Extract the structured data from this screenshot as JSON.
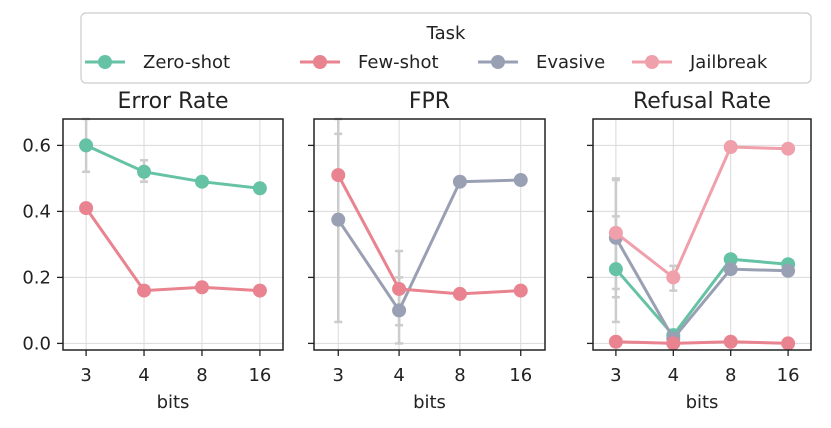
{
  "legend": {
    "title": "Task",
    "entries": [
      {
        "label": "Zero-shot",
        "color": "#66c2a5"
      },
      {
        "label": "Few-shot",
        "color": "#e8838f"
      },
      {
        "label": "Evasive",
        "color": "#9aa0b3"
      },
      {
        "label": "Jailbreak",
        "color": "#f0a0aa"
      }
    ]
  },
  "colors": {
    "Zero-shot": "#66c2a5",
    "Few-shot": "#e8838f",
    "Evasive": "#9aa0b3",
    "Jailbreak": "#f0a0aa",
    "grid": "#d9d9d9",
    "errorbar": "#cccccc"
  },
  "chart_data": [
    {
      "type": "line",
      "title": "Error Rate",
      "xlabel": "bits",
      "x": [
        "3",
        "4",
        "8",
        "16"
      ],
      "ylim": [
        -0.02,
        0.68
      ],
      "yticks": [
        0.0,
        0.2,
        0.4,
        0.6
      ],
      "ytick_labels": [
        "0.0",
        "0.2",
        "0.4",
        "0.6"
      ],
      "grid": true,
      "series": [
        {
          "name": "Zero-shot",
          "values": [
            0.6,
            0.52,
            0.49,
            0.47
          ],
          "err_low": [
            0.52,
            0.49,
            null,
            null
          ],
          "err_high": [
            0.68,
            0.555,
            null,
            null
          ]
        },
        {
          "name": "Few-shot",
          "values": [
            0.41,
            0.16,
            0.17,
            0.16
          ],
          "err_low": [
            null,
            null,
            null,
            null
          ],
          "err_high": [
            null,
            null,
            null,
            null
          ]
        }
      ]
    },
    {
      "type": "line",
      "title": "FPR",
      "xlabel": "bits",
      "x": [
        "3",
        "4",
        "8",
        "16"
      ],
      "ylim": [
        -0.02,
        0.68
      ],
      "yticks": [
        0.0,
        0.2,
        0.4,
        0.6
      ],
      "ytick_labels": [
        "",
        "",
        "",
        ""
      ],
      "grid": true,
      "series": [
        {
          "name": "Evasive",
          "values": [
            0.375,
            0.1,
            0.49,
            0.495
          ],
          "err_low": [
            0.065,
            0.0,
            null,
            null
          ],
          "err_high": [
            0.68,
            0.2,
            null,
            null
          ]
        },
        {
          "name": "Few-shot",
          "values": [
            0.51,
            0.165,
            0.15,
            0.16
          ],
          "err_low": [
            0.39,
            0.055,
            null,
            null
          ],
          "err_high": [
            0.635,
            0.28,
            null,
            null
          ]
        }
      ]
    },
    {
      "type": "line",
      "title": "Refusal Rate",
      "xlabel": "bits",
      "x": [
        "3",
        "4",
        "8",
        "16"
      ],
      "ylim": [
        -0.02,
        0.68
      ],
      "yticks": [
        0.0,
        0.2,
        0.4,
        0.6
      ],
      "ytick_labels": [
        "",
        "",
        "",
        ""
      ],
      "grid": true,
      "series": [
        {
          "name": "Zero-shot",
          "values": [
            0.225,
            0.025,
            0.255,
            0.24
          ],
          "err_low": [
            0.065,
            null,
            null,
            null
          ],
          "err_high": [
            0.385,
            null,
            null,
            null
          ]
        },
        {
          "name": "Evasive",
          "values": [
            0.32,
            0.015,
            0.225,
            0.22
          ],
          "err_low": [
            0.14,
            null,
            null,
            null
          ],
          "err_high": [
            0.5,
            null,
            null,
            null
          ]
        },
        {
          "name": "Few-shot",
          "values": [
            0.005,
            0.0,
            0.005,
            0.0
          ],
          "err_low": [
            null,
            null,
            null,
            null
          ],
          "err_high": [
            null,
            null,
            null,
            null
          ]
        },
        {
          "name": "Jailbreak",
          "values": [
            0.335,
            0.2,
            0.595,
            0.59
          ],
          "err_low": [
            0.165,
            0.16,
            null,
            null
          ],
          "err_high": [
            0.495,
            0.235,
            null,
            null
          ]
        }
      ]
    }
  ]
}
